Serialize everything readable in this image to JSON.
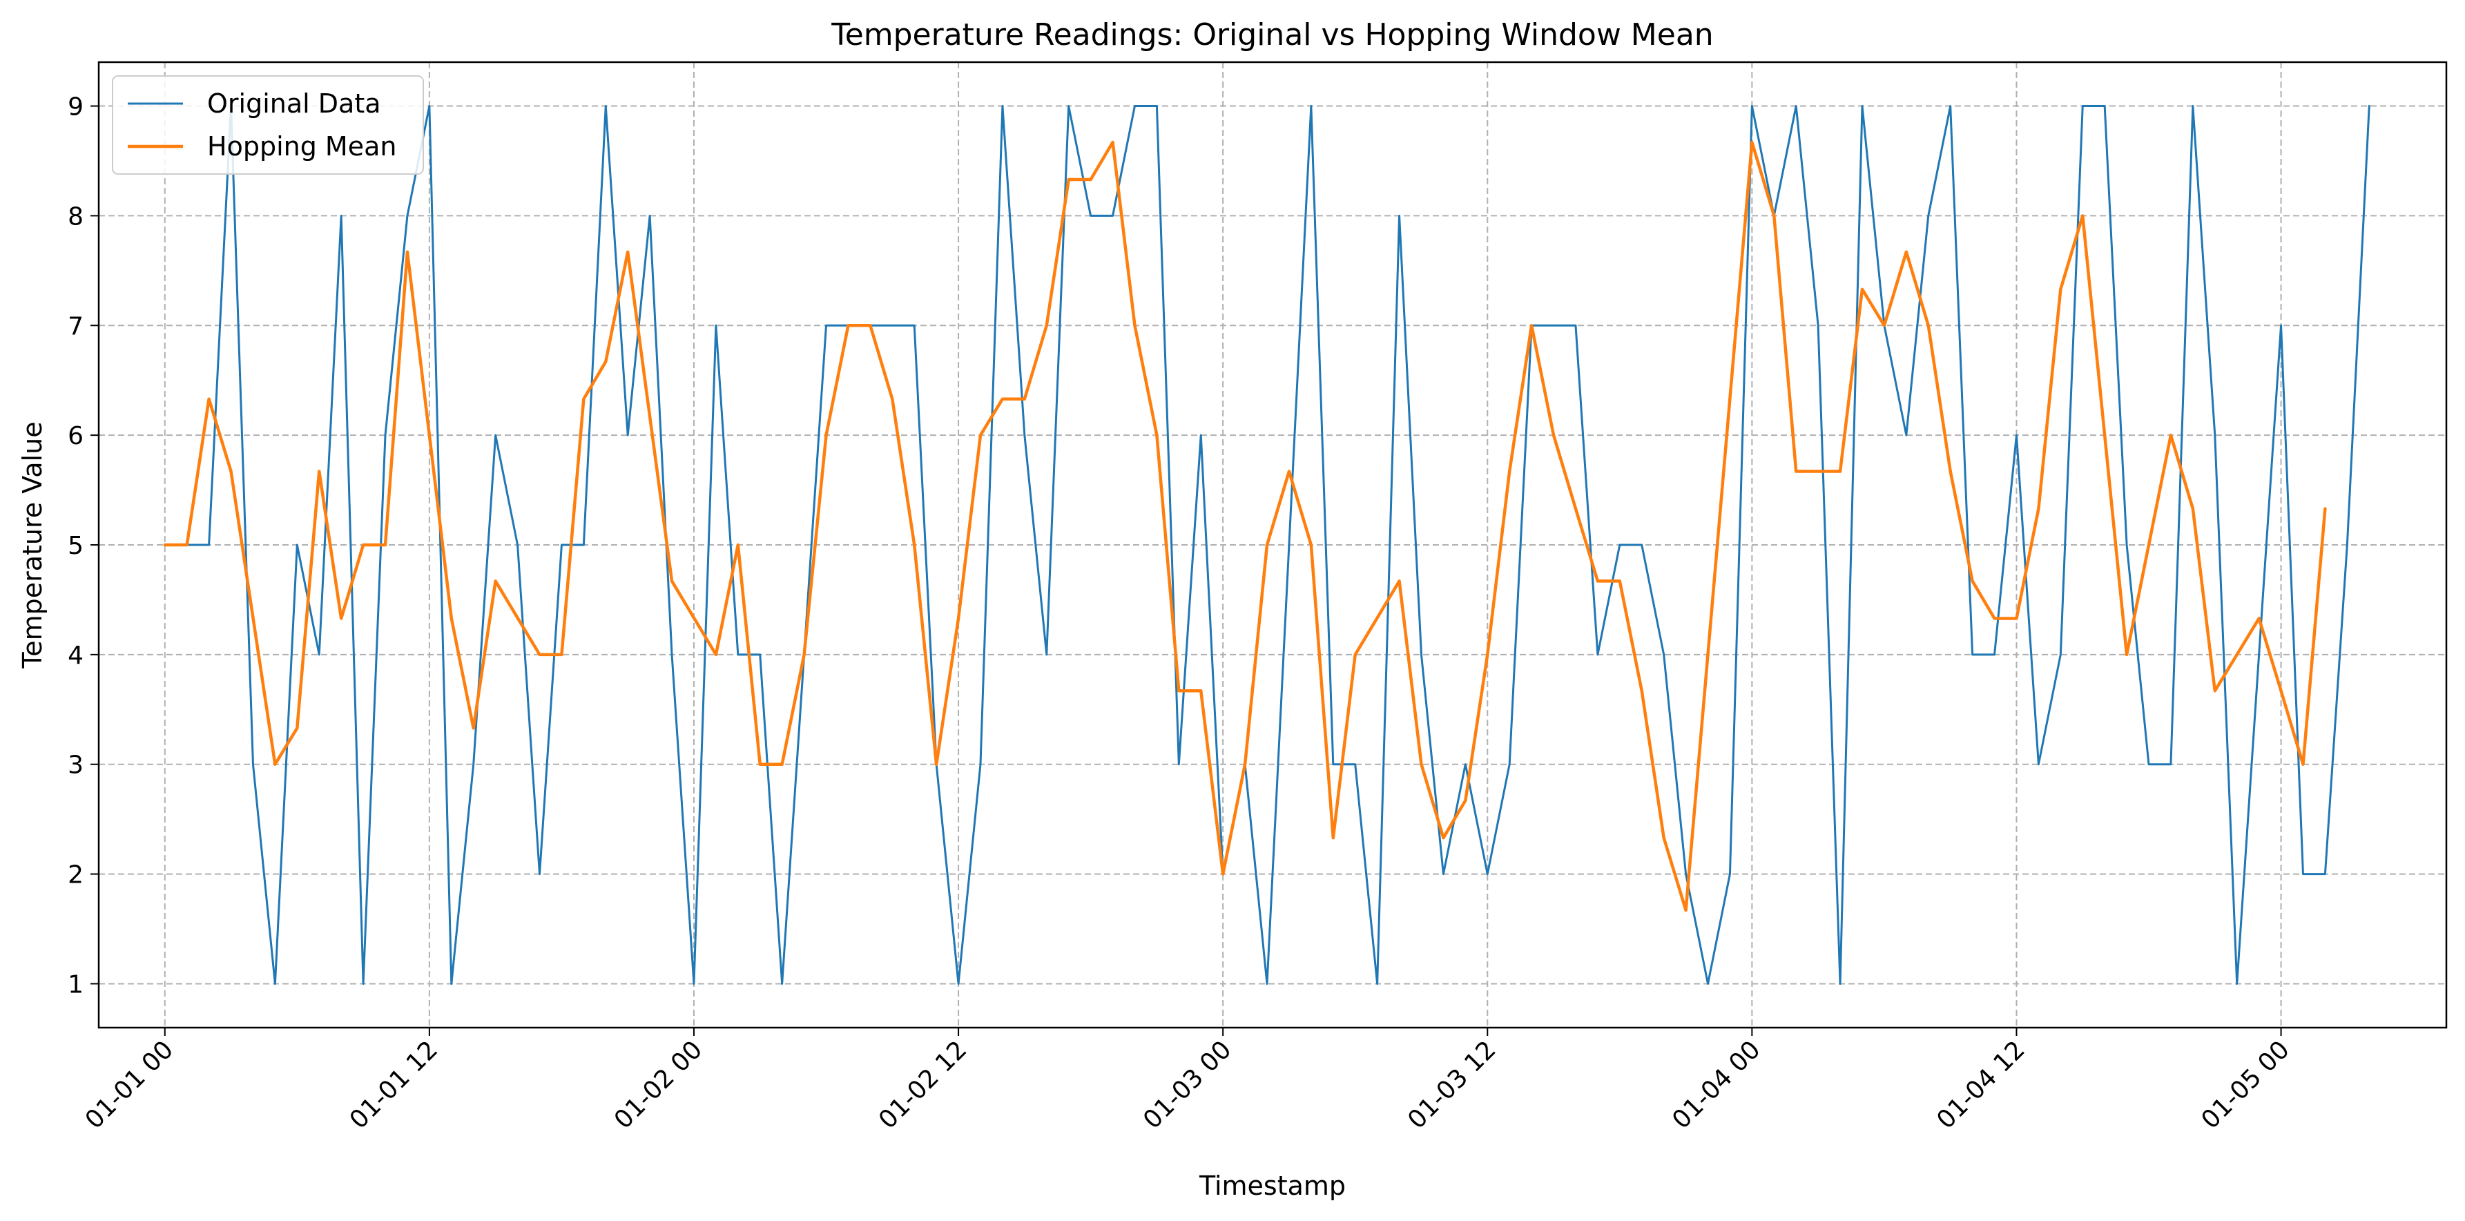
{
  "chart_data": {
    "type": "line",
    "title": "Temperature Readings: Original vs Hopping Window Mean",
    "xlabel": "Timestamp",
    "ylabel": "Temperature Value",
    "ylim": [
      0.6,
      9.4
    ],
    "xlim": [
      "2024-12-31T21:00",
      "2025-01-05T07:30"
    ],
    "x_ticks": [
      "01-01 00",
      "01-01 12",
      "01-02 00",
      "01-02 12",
      "01-03 00",
      "01-03 12",
      "01-04 00",
      "01-04 12",
      "01-05 00"
    ],
    "y_ticks": [
      1,
      2,
      3,
      4,
      5,
      6,
      7,
      8,
      9
    ],
    "grid": true,
    "legend_position": "upper left",
    "series": [
      {
        "name": "Original Data",
        "color": "#1f77b4",
        "x_start": "2025-01-01T00:00",
        "x_step_hours": 1,
        "values": [
          5,
          5,
          5,
          9,
          3,
          1,
          5,
          4,
          8,
          1,
          6,
          8,
          9,
          1,
          3,
          6,
          5,
          2,
          5,
          5,
          9,
          6,
          8,
          4,
          1,
          7,
          4,
          4,
          1,
          4,
          7,
          7,
          7,
          7,
          7,
          3,
          1,
          3,
          9,
          6,
          4,
          9,
          8,
          8,
          9,
          9,
          3,
          6,
          2,
          3,
          1,
          5,
          9,
          3,
          3,
          1,
          8,
          4,
          2,
          3,
          2,
          3,
          7,
          7,
          7,
          4,
          5,
          5,
          4,
          2,
          1,
          2,
          9,
          8,
          9,
          7,
          1,
          9,
          7,
          6,
          8,
          9,
          4,
          4,
          6,
          3,
          4,
          9,
          9,
          5,
          3,
          3,
          9,
          6,
          1,
          4,
          7,
          2,
          2,
          5,
          9
        ]
      },
      {
        "name": "Hopping Mean",
        "color": "#ff7f0e",
        "x_start": "2025-01-01T00:00",
        "x_step_hours": 1,
        "values": [
          5,
          5,
          6.33,
          5.67,
          null,
          3,
          3.33,
          5.67,
          4.33,
          5,
          5,
          7.67,
          null,
          4.33,
          3.33,
          4.67,
          null,
          4,
          4,
          6.33,
          6.67,
          7.67,
          null,
          4.67,
          null,
          4,
          5,
          3,
          3,
          4,
          6,
          7,
          7,
          6.33,
          5,
          3,
          4.33,
          6,
          6.33,
          6.33,
          7,
          8.33,
          8.33,
          8.67,
          7,
          6,
          3.67,
          3.67,
          2,
          3,
          5,
          5.67,
          5,
          2.33,
          4,
          null,
          4.67,
          3,
          2.33,
          2.67,
          4,
          5.67,
          7,
          6,
          5.33,
          4.67,
          4.67,
          3.67,
          2.33,
          1.67,
          null,
          null,
          8.67,
          8,
          5.67,
          5.67,
          5.67,
          7.33,
          7,
          7.67,
          7,
          5.67,
          4.67,
          4.33,
          4.33,
          5.33,
          7.33,
          8,
          null,
          4,
          5,
          6,
          5.33,
          3.67,
          4,
          4.33,
          3.67,
          3,
          5.33
        ]
      }
    ]
  }
}
